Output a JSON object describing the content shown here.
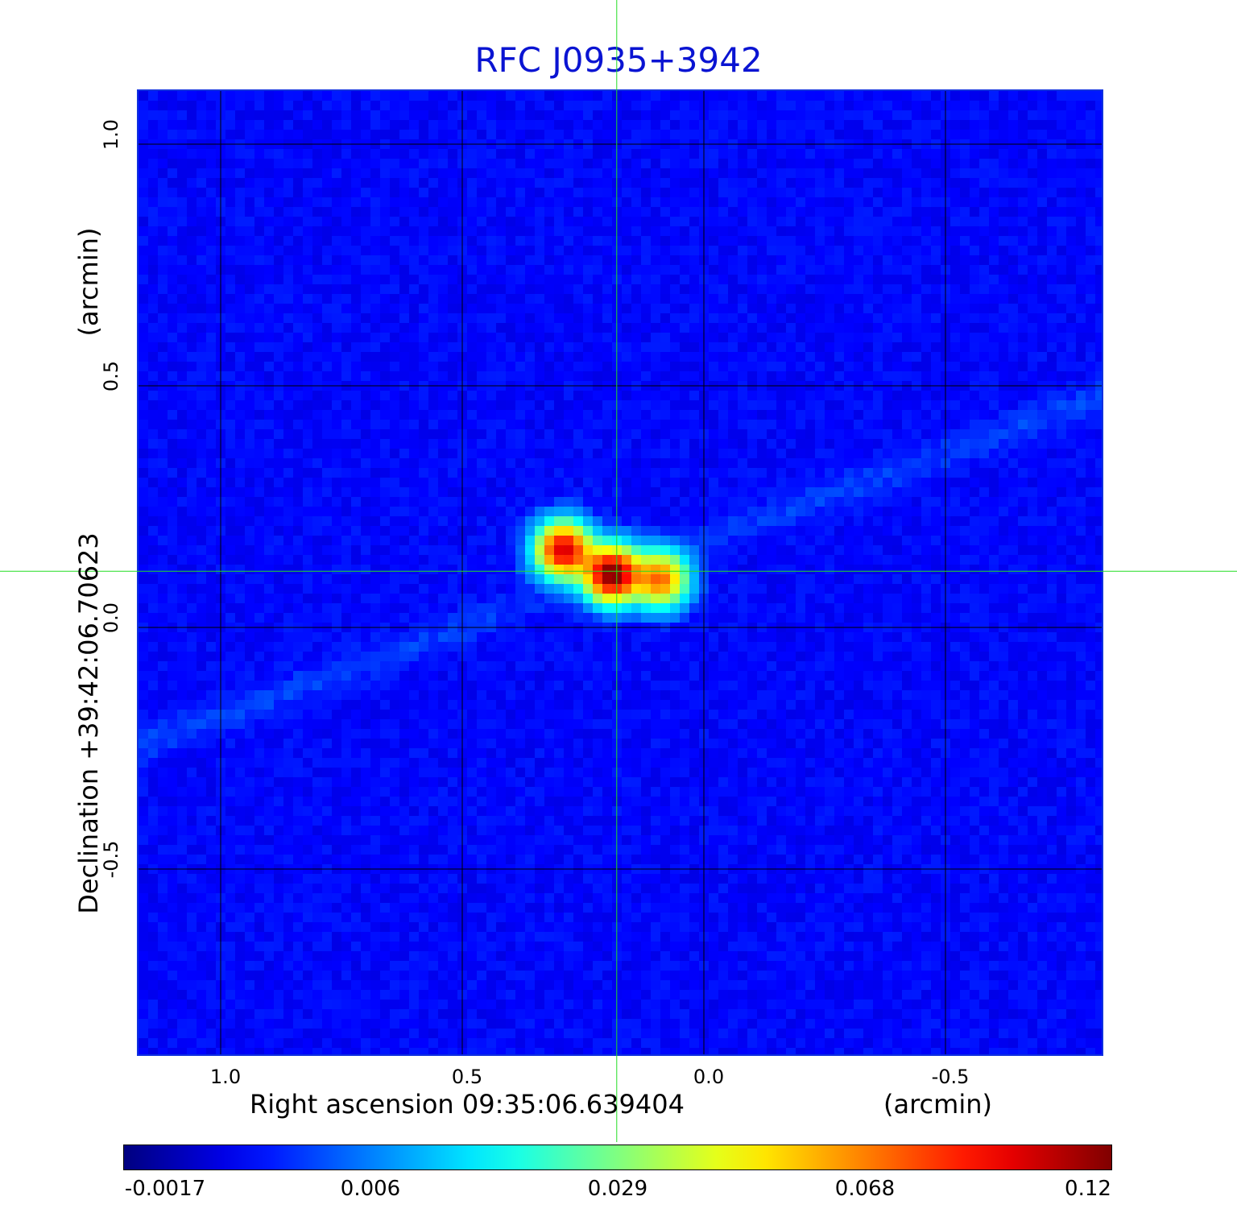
{
  "chart_data": {
    "type": "heatmap",
    "title": "RFC J0935+3942",
    "xlabel": "Right ascension  09:35:06.639404",
    "xunit": "(arcmin)",
    "ylabel": "Declination  +39:42:06.70623",
    "yunit": "(arcmin)",
    "x_axis_direction": "decreasing to the right",
    "x_ticks": [
      "1.0",
      "0.5",
      "0.0",
      "-0.5"
    ],
    "y_ticks": [
      "1.0",
      "0.5",
      "0.0",
      "-0.5"
    ],
    "xlim": [
      1.17,
      -0.83
    ],
    "ylim": [
      -0.89,
      1.11
    ],
    "grid": true,
    "crosshair": {
      "x": 0.177,
      "y": 0.113,
      "color": "#22dd22"
    },
    "colormap": "jet",
    "colorbar": {
      "ticks": [
        "-0.0017",
        "0.006",
        "0.029",
        "0.068",
        "0.12"
      ],
      "range": [
        -0.0017,
        0.12
      ],
      "placement": "bottom"
    },
    "sources": [
      {
        "x": 0.29,
        "y": 0.16,
        "peak": 0.1
      },
      {
        "x": 0.19,
        "y": 0.11,
        "peak": 0.12
      },
      {
        "x": 0.09,
        "y": 0.1,
        "peak": 0.07
      }
    ]
  }
}
